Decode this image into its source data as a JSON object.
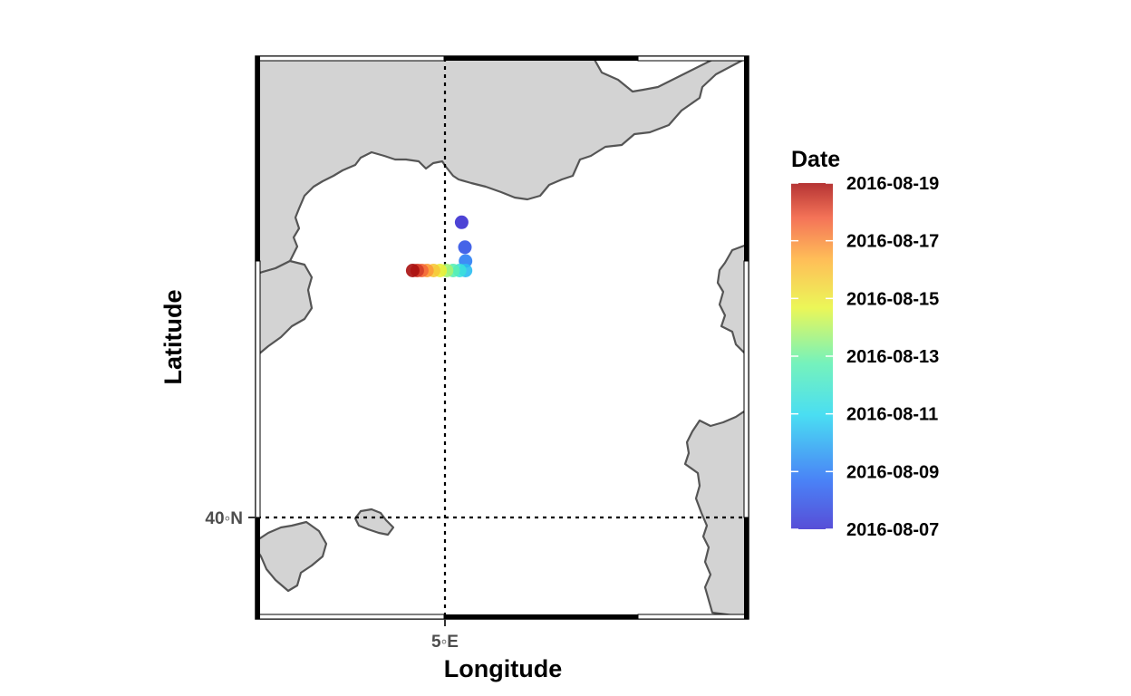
{
  "map": {
    "xlabel": "Longitude",
    "ylabel": "Latitude",
    "x_tick": "5◦E",
    "y_tick": "40◦N",
    "land_color": "#d3d3d3",
    "coast_color": "#555555",
    "graticule": "dotted",
    "grid": true
  },
  "legend": {
    "title": "Date",
    "placement": "right",
    "labels": [
      "2016-08-19",
      "2016-08-17",
      "2016-08-15",
      "2016-08-13",
      "2016-08-11",
      "2016-08-09",
      "2016-08-07"
    ],
    "colormap": [
      "#3a2fd0",
      "#2a6cf5",
      "#2ad8f0",
      "#5df0b0",
      "#e8f53a",
      "#ffb23a",
      "#f25a3a",
      "#a81010"
    ]
  },
  "chart_data": {
    "type": "scatter",
    "xlabel": "Longitude",
    "ylabel": "Latitude",
    "xlim": [
      2.1,
      9.6
    ],
    "ylim": [
      38.5,
      45.0
    ],
    "color_by": "Date",
    "color_range": [
      "2016-08-07",
      "2016-08-19"
    ],
    "points": [
      {
        "lon": 5.23,
        "lat": 43.09,
        "date": "2016-08-07"
      },
      {
        "lon": 5.28,
        "lat": 42.8,
        "date": "2016-08-08"
      },
      {
        "lon": 5.29,
        "lat": 42.64,
        "date": "2016-08-09"
      },
      {
        "lon": 5.29,
        "lat": 42.53,
        "date": "2016-08-10"
      },
      {
        "lon": 5.2,
        "lat": 42.53,
        "date": "2016-08-11"
      },
      {
        "lon": 5.1,
        "lat": 42.53,
        "date": "2016-08-12"
      },
      {
        "lon": 5.0,
        "lat": 42.53,
        "date": "2016-08-13"
      },
      {
        "lon": 4.9,
        "lat": 42.53,
        "date": "2016-08-14"
      },
      {
        "lon": 4.8,
        "lat": 42.53,
        "date": "2016-08-15"
      },
      {
        "lon": 4.7,
        "lat": 42.53,
        "date": "2016-08-16"
      },
      {
        "lon": 4.62,
        "lat": 42.53,
        "date": "2016-08-17"
      },
      {
        "lon": 4.55,
        "lat": 42.53,
        "date": "2016-08-18"
      },
      {
        "lon": 4.48,
        "lat": 42.53,
        "date": "2016-08-19"
      }
    ]
  }
}
